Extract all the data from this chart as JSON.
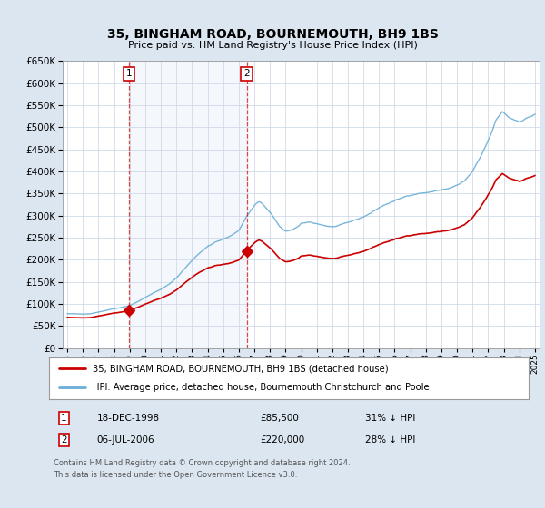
{
  "title": "35, BINGHAM ROAD, BOURNEMOUTH, BH9 1BS",
  "subtitle": "Price paid vs. HM Land Registry's House Price Index (HPI)",
  "legend_line1": "35, BINGHAM ROAD, BOURNEMOUTH, BH9 1BS (detached house)",
  "legend_line2": "HPI: Average price, detached house, Bournemouth Christchurch and Poole",
  "table_row1": [
    "1",
    "18-DEC-1998",
    "£85,500",
    "31% ↓ HPI"
  ],
  "table_row2": [
    "2",
    "06-JUL-2006",
    "£220,000",
    "28% ↓ HPI"
  ],
  "footer": "Contains HM Land Registry data © Crown copyright and database right 2024.\nThis data is licensed under the Open Government Licence v3.0.",
  "sale1_year": 1998.96,
  "sale1_price": 85500,
  "sale2_year": 2006.51,
  "sale2_price": 220000,
  "red_color": "#cc0000",
  "blue_color": "#6baed6",
  "background_color": "#dce6f1",
  "plot_bg": "#ffffff",
  "grid_color": "#c8d4e3",
  "ylim": [
    0,
    650000
  ],
  "yticks": [
    0,
    50000,
    100000,
    150000,
    200000,
    250000,
    300000,
    350000,
    400000,
    450000,
    500000,
    550000,
    600000,
    650000
  ],
  "xlim_start": 1994.7,
  "xlim_end": 2025.3,
  "hpi_base_points": [
    [
      1995.0,
      78000
    ],
    [
      1995.5,
      77000
    ],
    [
      1996.0,
      76500
    ],
    [
      1996.5,
      78000
    ],
    [
      1997.0,
      82000
    ],
    [
      1997.5,
      86000
    ],
    [
      1998.0,
      90000
    ],
    [
      1998.5,
      93000
    ],
    [
      1999.0,
      98000
    ],
    [
      1999.5,
      106000
    ],
    [
      2000.0,
      116000
    ],
    [
      2000.5,
      126000
    ],
    [
      2001.0,
      134000
    ],
    [
      2001.5,
      145000
    ],
    [
      2002.0,
      160000
    ],
    [
      2002.5,
      180000
    ],
    [
      2003.0,
      200000
    ],
    [
      2003.5,
      218000
    ],
    [
      2004.0,
      232000
    ],
    [
      2004.5,
      242000
    ],
    [
      2005.0,
      248000
    ],
    [
      2005.5,
      255000
    ],
    [
      2006.0,
      268000
    ],
    [
      2006.5,
      300000
    ],
    [
      2007.0,
      325000
    ],
    [
      2007.3,
      335000
    ],
    [
      2007.5,
      330000
    ],
    [
      2007.8,
      318000
    ],
    [
      2008.0,
      310000
    ],
    [
      2008.3,
      295000
    ],
    [
      2008.6,
      278000
    ],
    [
      2008.9,
      268000
    ],
    [
      2009.0,
      265000
    ],
    [
      2009.3,
      268000
    ],
    [
      2009.6,
      272000
    ],
    [
      2009.9,
      278000
    ],
    [
      2010.0,
      282000
    ],
    [
      2010.5,
      285000
    ],
    [
      2011.0,
      282000
    ],
    [
      2011.5,
      278000
    ],
    [
      2012.0,
      275000
    ],
    [
      2012.5,
      278000
    ],
    [
      2013.0,
      282000
    ],
    [
      2013.5,
      288000
    ],
    [
      2014.0,
      295000
    ],
    [
      2014.5,
      305000
    ],
    [
      2015.0,
      316000
    ],
    [
      2015.5,
      325000
    ],
    [
      2016.0,
      332000
    ],
    [
      2016.5,
      338000
    ],
    [
      2017.0,
      345000
    ],
    [
      2017.5,
      350000
    ],
    [
      2018.0,
      352000
    ],
    [
      2018.5,
      355000
    ],
    [
      2019.0,
      358000
    ],
    [
      2019.5,
      362000
    ],
    [
      2020.0,
      368000
    ],
    [
      2020.5,
      378000
    ],
    [
      2021.0,
      398000
    ],
    [
      2021.5,
      428000
    ],
    [
      2022.0,
      465000
    ],
    [
      2022.3,
      490000
    ],
    [
      2022.5,
      510000
    ],
    [
      2022.7,
      520000
    ],
    [
      2022.9,
      530000
    ],
    [
      2023.1,
      525000
    ],
    [
      2023.3,
      518000
    ],
    [
      2023.5,
      515000
    ],
    [
      2023.7,
      512000
    ],
    [
      2024.0,
      510000
    ],
    [
      2024.3,
      515000
    ],
    [
      2024.6,
      520000
    ],
    [
      2024.9,
      525000
    ],
    [
      2025.0,
      528000
    ]
  ]
}
